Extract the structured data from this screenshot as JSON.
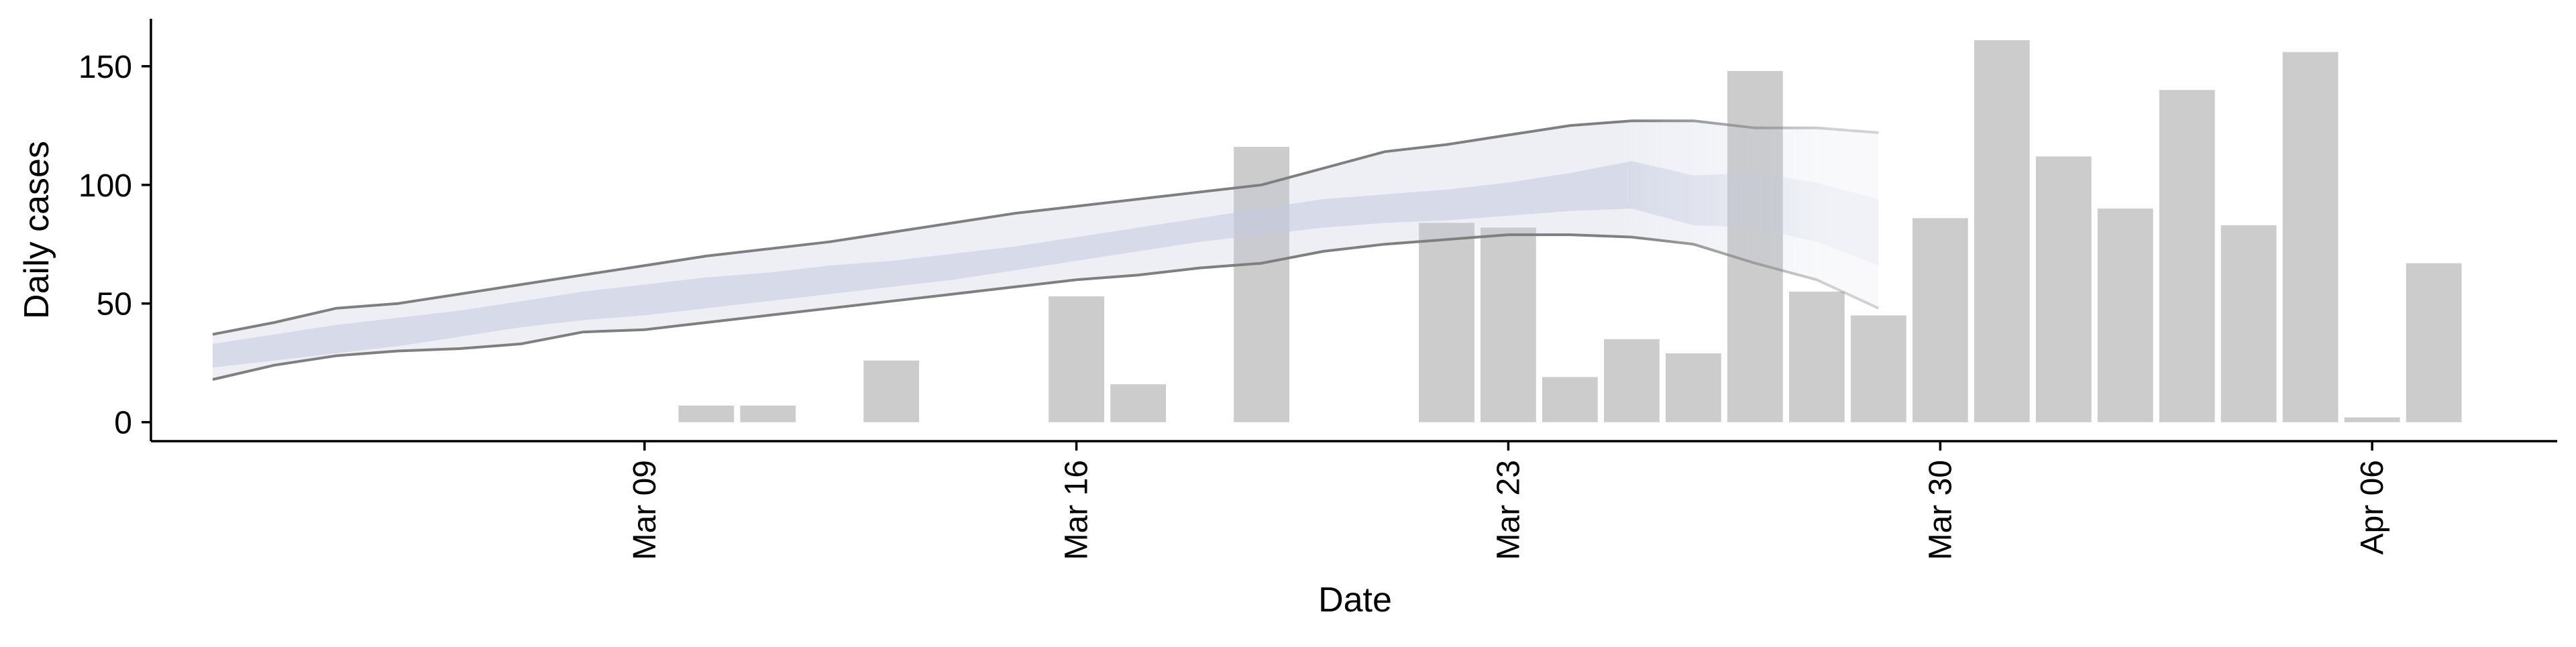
{
  "chart_data": {
    "type": "bar",
    "title": "",
    "xlabel": "Date",
    "ylabel": "Daily cases",
    "ylim": [
      -8,
      170
    ],
    "xlim": [
      "2020-03-01",
      "2020-04-09"
    ],
    "x_ticks": [
      {
        "date": "2020-03-09",
        "label": "Mar 09"
      },
      {
        "date": "2020-03-16",
        "label": "Mar 16"
      },
      {
        "date": "2020-03-23",
        "label": "Mar 23"
      },
      {
        "date": "2020-03-30",
        "label": "Mar 30"
      },
      {
        "date": "2020-04-06",
        "label": "Apr 06"
      }
    ],
    "y_ticks": [
      0,
      50,
      100,
      150
    ],
    "grid": false,
    "legend": "none",
    "bar_color": "#cccccc",
    "band_color": "#c5cadf",
    "line_color": "#7f7f7f",
    "bars": [
      {
        "date": "2020-03-10",
        "value": 7
      },
      {
        "date": "2020-03-11",
        "value": 7
      },
      {
        "date": "2020-03-13",
        "value": 26
      },
      {
        "date": "2020-03-16",
        "value": 53
      },
      {
        "date": "2020-03-17",
        "value": 16
      },
      {
        "date": "2020-03-19",
        "value": 116
      },
      {
        "date": "2020-03-22",
        "value": 84
      },
      {
        "date": "2020-03-23",
        "value": 82
      },
      {
        "date": "2020-03-24",
        "value": 19
      },
      {
        "date": "2020-03-25",
        "value": 35
      },
      {
        "date": "2020-03-26",
        "value": 29
      },
      {
        "date": "2020-03-27",
        "value": 148
      },
      {
        "date": "2020-03-28",
        "value": 55
      },
      {
        "date": "2020-03-29",
        "value": 45
      },
      {
        "date": "2020-03-30",
        "value": 86
      },
      {
        "date": "2020-03-31",
        "value": 161
      },
      {
        "date": "2020-04-01",
        "value": 112
      },
      {
        "date": "2020-04-02",
        "value": 90
      },
      {
        "date": "2020-04-03",
        "value": 140
      },
      {
        "date": "2020-04-04",
        "value": 83
      },
      {
        "date": "2020-04-05",
        "value": 156
      },
      {
        "date": "2020-04-06",
        "value": 2
      },
      {
        "date": "2020-04-07",
        "value": 67
      }
    ],
    "estimate": [
      {
        "date": "2020-03-02",
        "lower90": 18,
        "lower50": 23,
        "upper50": 33,
        "upper90": 37
      },
      {
        "date": "2020-03-03",
        "lower90": 24,
        "lower50": 26,
        "upper50": 37,
        "upper90": 42
      },
      {
        "date": "2020-03-04",
        "lower90": 28,
        "lower50": 29,
        "upper50": 41,
        "upper90": 48
      },
      {
        "date": "2020-03-05",
        "lower90": 30,
        "lower50": 32,
        "upper50": 44,
        "upper90": 50
      },
      {
        "date": "2020-03-06",
        "lower90": 31,
        "lower50": 36,
        "upper50": 47,
        "upper90": 54
      },
      {
        "date": "2020-03-07",
        "lower90": 33,
        "lower50": 40,
        "upper50": 51,
        "upper90": 58
      },
      {
        "date": "2020-03-08",
        "lower90": 38,
        "lower50": 43,
        "upper50": 55,
        "upper90": 62
      },
      {
        "date": "2020-03-09",
        "lower90": 39,
        "lower50": 45,
        "upper50": 58,
        "upper90": 66
      },
      {
        "date": "2020-03-10",
        "lower90": 42,
        "lower50": 48,
        "upper50": 61,
        "upper90": 70
      },
      {
        "date": "2020-03-11",
        "lower90": 45,
        "lower50": 51,
        "upper50": 63,
        "upper90": 73
      },
      {
        "date": "2020-03-12",
        "lower90": 48,
        "lower50": 54,
        "upper50": 66,
        "upper90": 76
      },
      {
        "date": "2020-03-13",
        "lower90": 51,
        "lower50": 57,
        "upper50": 68,
        "upper90": 80
      },
      {
        "date": "2020-03-14",
        "lower90": 54,
        "lower50": 60,
        "upper50": 71,
        "upper90": 84
      },
      {
        "date": "2020-03-15",
        "lower90": 57,
        "lower50": 64,
        "upper50": 74,
        "upper90": 88
      },
      {
        "date": "2020-03-16",
        "lower90": 60,
        "lower50": 68,
        "upper50": 78,
        "upper90": 91
      },
      {
        "date": "2020-03-17",
        "lower90": 62,
        "lower50": 72,
        "upper50": 82,
        "upper90": 94
      },
      {
        "date": "2020-03-18",
        "lower90": 65,
        "lower50": 76,
        "upper50": 86,
        "upper90": 97
      },
      {
        "date": "2020-03-19",
        "lower90": 67,
        "lower50": 79,
        "upper50": 90,
        "upper90": 100
      },
      {
        "date": "2020-03-20",
        "lower90": 72,
        "lower50": 82,
        "upper50": 94,
        "upper90": 107
      },
      {
        "date": "2020-03-21",
        "lower90": 75,
        "lower50": 84,
        "upper50": 96,
        "upper90": 114
      },
      {
        "date": "2020-03-22",
        "lower90": 77,
        "lower50": 85,
        "upper50": 98,
        "upper90": 117
      },
      {
        "date": "2020-03-23",
        "lower90": 79,
        "lower50": 87,
        "upper50": 101,
        "upper90": 121
      },
      {
        "date": "2020-03-24",
        "lower90": 79,
        "lower50": 89,
        "upper50": 105,
        "upper90": 125
      },
      {
        "date": "2020-03-25",
        "lower90": 78,
        "lower50": 90,
        "upper50": 110,
        "upper90": 127
      },
      {
        "date": "2020-03-26",
        "lower90": 75,
        "lower50": 83,
        "upper50": 104,
        "upper90": 127
      },
      {
        "date": "2020-03-27",
        "lower90": 67,
        "lower50": 82,
        "upper50": 105,
        "upper90": 124
      },
      {
        "date": "2020-03-28",
        "lower90": 60,
        "lower50": 76,
        "upper50": 101,
        "upper90": 124
      },
      {
        "date": "2020-03-29",
        "lower90": 48,
        "lower50": 66,
        "upper50": 94,
        "upper90": 122
      }
    ]
  }
}
